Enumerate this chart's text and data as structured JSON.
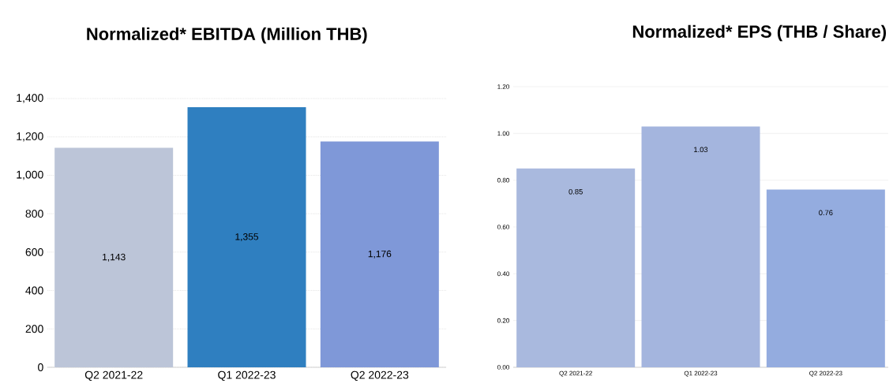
{
  "chart_data": [
    {
      "type": "bar",
      "title": "Normalized* EBITDA (Million THB)",
      "categories": [
        "Q2 2021-22",
        "Q1 2022-23",
        "Q2 2022-23"
      ],
      "values": [
        1143,
        1355,
        1176
      ],
      "value_labels": [
        "1,143",
        "1,355",
        "1,176"
      ],
      "colors": [
        "#bcc5d8",
        "#2f7fc0",
        "#7f98d8"
      ],
      "ylim": [
        0,
        1400
      ],
      "yticks": [
        0,
        200,
        400,
        600,
        800,
        {
          "value": 1000,
          "label": "1,000"
        },
        {
          "value": 1200,
          "label": "1,200"
        },
        {
          "value": 1400,
          "label": "1,400"
        }
      ],
      "grid": "y"
    },
    {
      "type": "bar",
      "title": "Normalized* EPS (THB / Share)",
      "categories": [
        "Q2 2021-22",
        "Q1 2022-23",
        "Q2 2022-23"
      ],
      "values": [
        0.85,
        1.03,
        0.76
      ],
      "data_labels": true,
      "colors": [
        "#a9b9de",
        "#a4b5de",
        "#94acdf"
      ],
      "ylim": [
        0,
        1.2
      ],
      "yticks": [
        {
          "value": 0,
          "label": "0.00"
        },
        {
          "value": 0.2,
          "label": "0.20"
        },
        {
          "value": 0.4,
          "label": "0.40"
        },
        {
          "value": 0.6,
          "label": "0.60"
        },
        {
          "value": 0.8,
          "label": "0.80"
        },
        {
          "value": 1.0,
          "label": "1.00"
        },
        {
          "value": 1.2,
          "label": "1.20"
        }
      ],
      "grid": "y"
    }
  ]
}
